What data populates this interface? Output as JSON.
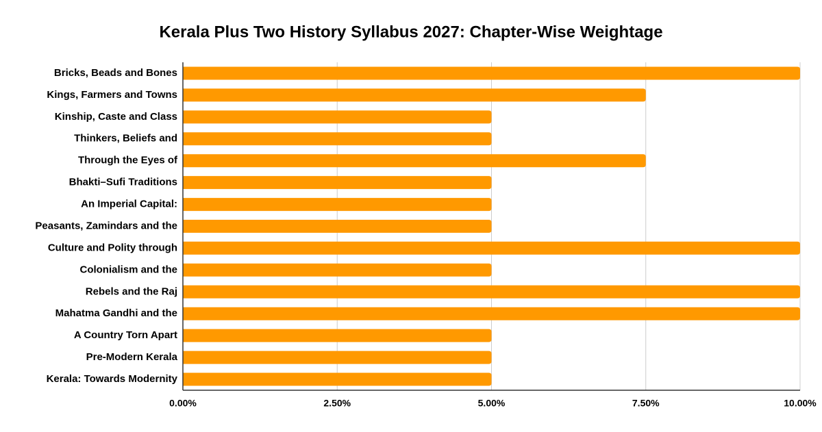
{
  "chart_data": {
    "type": "hbar",
    "title": "Kerala Plus Two History Syllabus 2027: Chapter-Wise Weightage",
    "categories": [
      "Bricks, Beads and Bones",
      "Kings, Farmers and Towns",
      "Kinship, Caste and Class",
      "Thinkers, Beliefs and",
      "Through the Eyes of",
      "Bhakti–Sufi Traditions",
      "An Imperial Capital:",
      "Peasants, Zamindars and the",
      "Culture and Polity through",
      "Colonialism and the",
      "Rebels and the Raj",
      "Mahatma Gandhi and the",
      "A Country Torn Apart",
      "Pre-Modern Kerala",
      "Kerala: Towards Modernity"
    ],
    "values": [
      10,
      7.5,
      5,
      5,
      7.5,
      5,
      5,
      5,
      10,
      5,
      10,
      10,
      5,
      5,
      5
    ],
    "color": "#ff9900",
    "xlim": [
      0,
      10
    ],
    "xticks": [
      {
        "value": 0,
        "label": "0.00%"
      },
      {
        "value": 2.5,
        "label": "2.50%"
      },
      {
        "value": 5,
        "label": "5.00%"
      },
      {
        "value": 7.5,
        "label": "7.50%"
      },
      {
        "value": 10,
        "label": "10.00%"
      }
    ],
    "grid": true
  }
}
